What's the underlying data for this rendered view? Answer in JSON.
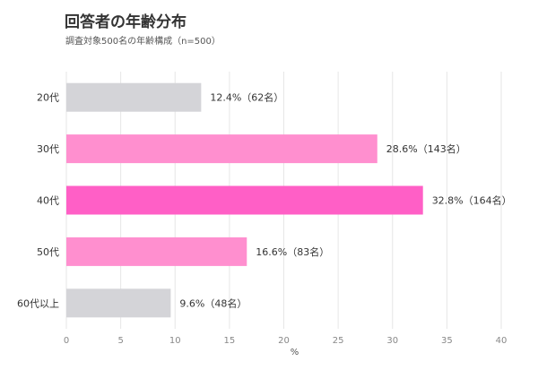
{
  "chart_data": {
    "type": "bar",
    "orientation": "horizontal",
    "title": "回答者の年齢分布",
    "subtitle": "調査対象500名の年齢構成（n=500）",
    "xlabel": "%",
    "ylabel": "",
    "xlim": [
      0,
      40
    ],
    "x_ticks": [
      0,
      5,
      10,
      15,
      20,
      25,
      30,
      35,
      40
    ],
    "grid": true,
    "categories": [
      "20代",
      "30代",
      "40代",
      "50代",
      "60代以上"
    ],
    "values": [
      12.4,
      28.6,
      32.8,
      16.6,
      9.6
    ],
    "data_labels": [
      "12.4%（62名）",
      "28.6%（143名）",
      "32.8%（164名）",
      "16.6%（83名）",
      "9.6%（48名）"
    ],
    "colors": [
      "#d4d4d8",
      "#ff8fcf",
      "#ff5fc6",
      "#ff8fcf",
      "#d4d4d8"
    ]
  }
}
